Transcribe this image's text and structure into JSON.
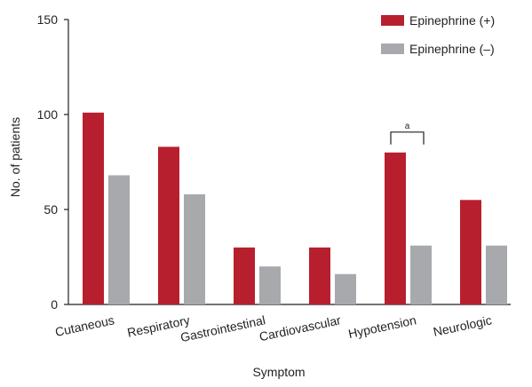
{
  "colors": {
    "series_1": "#b81f2e",
    "series_2": "#a7a9ac",
    "axis": "#231f20"
  },
  "chart_data": {
    "type": "bar",
    "title": "",
    "xlabel": "Symptom",
    "ylabel": "No. of patients",
    "ylim": [
      0,
      150
    ],
    "yticks": [
      0,
      50,
      100,
      150
    ],
    "grid": false,
    "legend_position": "top-right",
    "categories": [
      "Cutaneous",
      "Respiratory",
      "Gastrointestinal",
      "Cardiovascular",
      "Hypotension",
      "Neurologic"
    ],
    "series": [
      {
        "name": "Epinephrine (+)",
        "values": [
          101,
          83,
          30,
          30,
          80,
          55
        ]
      },
      {
        "name": "Epinephrine (–)",
        "values": [
          68,
          58,
          20,
          16,
          31,
          31
        ]
      }
    ],
    "annotations": [
      {
        "text": "a",
        "category": "Hypotension",
        "type": "significance-bracket"
      }
    ]
  }
}
